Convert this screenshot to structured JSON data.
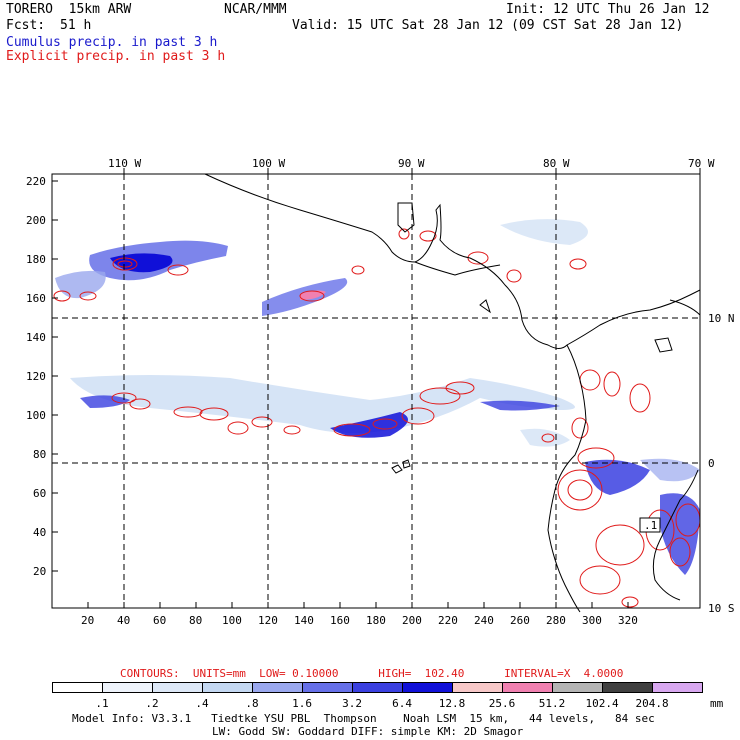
{
  "header": {
    "model": "TORERO  15km ARW",
    "org": "NCAR/MMM",
    "init": "Init: 12 UTC Thu 26 Jan 12",
    "fcst_label": "Fcst:",
    "fcst_value": "51 h",
    "valid": "Valid: 15 UTC Sat 28 Jan 12 (09 CST Sat 28 Jan 12)",
    "cumulus": "Cumulus precip. in past 3 h",
    "explicit": "Explicit precip. in past 3 h"
  },
  "map": {
    "lon_labels": [
      "110 W",
      "100 W",
      "90 W",
      "80 W",
      "70 W"
    ],
    "lat_labels": [
      "10 N",
      "0",
      "10 S"
    ],
    "y_ticks": [
      "220",
      "200",
      "180",
      "160",
      "140",
      "120",
      "100",
      "80",
      "60",
      "40",
      "20"
    ],
    "x_ticks": [
      "20",
      "40",
      "60",
      "80",
      "100",
      "120",
      "140",
      "160",
      "180",
      "200",
      "220",
      "240",
      "260",
      "280",
      "300",
      "320"
    ],
    "annotation": ".1"
  },
  "contours_info": {
    "text": "CONTOURS:  UNITS=mm  LOW= 0.10000      HIGH=  102.40      INTERVAL=X  4.0000"
  },
  "legend": {
    "labels": [
      ".1",
      ".2",
      ".4",
      ".8",
      "1.6",
      "3.2",
      "6.4",
      "12.8",
      "25.6",
      "51.2",
      "102.4",
      "204.8"
    ],
    "units": "mm",
    "colors": [
      "#ffffff",
      "#eef3fb",
      "#dde8f7",
      "#c4d8f2",
      "#9aa8ee",
      "#6670e8",
      "#3a40e0",
      "#1010d8",
      "#f7c8c8",
      "#f080b0",
      "#b4b4b4",
      "#404040",
      "#d8a8f0"
    ]
  },
  "footer": {
    "line1": "Model Info: V3.3.1   Tiedtke YSU PBL  Thompson    Noah LSM  15 km,   44 levels,   84 sec",
    "line2": "LW: Godd SW: Goddard DIFF: simple KM: 2D Smagor"
  }
}
